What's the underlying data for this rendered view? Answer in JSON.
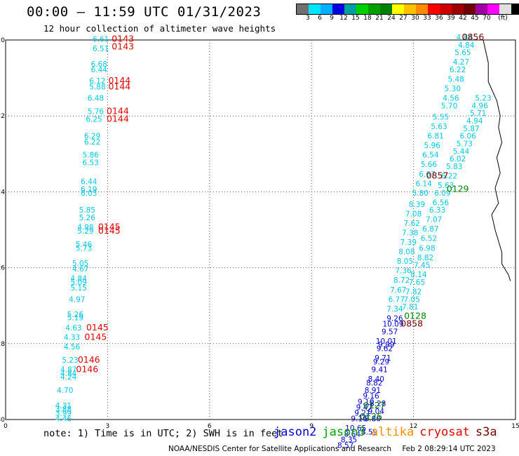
{
  "header": {
    "title": "00:00 – 11:59 UTC 01/31/2023",
    "subtitle": "12 hour collection of altimeter wave heights"
  },
  "colorbar": {
    "colors": [
      "#707070",
      "#00e5ff",
      "#00b0ff",
      "#0000e0",
      "#00a0a0",
      "#00d000",
      "#00a000",
      "#008000",
      "#ffff00",
      "#ffc000",
      "#ff8c00",
      "#ff0000",
      "#d00000",
      "#a00000",
      "#700000",
      "#a000a0",
      "#ff00ff",
      "#e0e0e0",
      "#000000"
    ],
    "labels": [
      "3",
      "6",
      "9",
      "12",
      "15",
      "18",
      "21",
      "24",
      "27",
      "30",
      "33",
      "36",
      "39",
      "42",
      "45",
      "70",
      "(ft)"
    ]
  },
  "chart_data": {
    "type": "scatter",
    "xlim": [
      0,
      15
    ],
    "ylim": [
      -30,
      -20
    ],
    "x_ticks": [
      "0",
      "3",
      "6",
      "9",
      "12",
      "15"
    ],
    "y_ticks": [
      "-20",
      "-22",
      "-24",
      "-26",
      "-28",
      "-30"
    ],
    "grid": true,
    "series": [
      {
        "name": "cryosat",
        "color": "#00c8e8",
        "points": [
          {
            "x": 2.8,
            "y": -20.05,
            "v": "6.61"
          },
          {
            "x": 2.8,
            "y": -20.3,
            "v": "6.51"
          },
          {
            "x": 2.75,
            "y": -20.7,
            "v": "6.68"
          },
          {
            "x": 2.75,
            "y": -20.85,
            "v": "6.44"
          },
          {
            "x": 2.7,
            "y": -21.15,
            "v": "6.12"
          },
          {
            "x": 2.7,
            "y": -21.3,
            "v": "5.88"
          },
          {
            "x": 2.65,
            "y": -21.6,
            "v": "6.48"
          },
          {
            "x": 2.65,
            "y": -21.95,
            "v": "5.76"
          },
          {
            "x": 2.6,
            "y": -22.15,
            "v": "6.25"
          },
          {
            "x": 2.55,
            "y": -22.6,
            "v": "6.29"
          },
          {
            "x": 2.55,
            "y": -22.75,
            "v": "6.22"
          },
          {
            "x": 2.5,
            "y": -23.1,
            "v": "5.86"
          },
          {
            "x": 2.5,
            "y": -23.3,
            "v": "6.53"
          },
          {
            "x": 2.45,
            "y": -23.8,
            "v": "6.44"
          },
          {
            "x": 2.45,
            "y": -24.0,
            "v": "6.19"
          },
          {
            "x": 2.45,
            "y": -24.1,
            "v": "6.03"
          },
          {
            "x": 2.4,
            "y": -24.55,
            "v": "5.85"
          },
          {
            "x": 2.4,
            "y": -24.75,
            "v": "5.26"
          },
          {
            "x": 2.35,
            "y": -25.0,
            "v": "4.98"
          },
          {
            "x": 2.35,
            "y": -25.1,
            "v": "5.29"
          },
          {
            "x": 2.3,
            "y": -25.45,
            "v": "5.46"
          },
          {
            "x": 2.3,
            "y": -25.55,
            "v": "5.73"
          },
          {
            "x": 2.2,
            "y": -25.95,
            "v": "5.05"
          },
          {
            "x": 2.2,
            "y": -26.1,
            "v": "4.67"
          },
          {
            "x": 2.15,
            "y": -26.35,
            "v": "4.84"
          },
          {
            "x": 2.15,
            "y": -26.45,
            "v": "5.09"
          },
          {
            "x": 2.15,
            "y": -26.6,
            "v": "5.15"
          },
          {
            "x": 2.1,
            "y": -26.9,
            "v": "4.97"
          },
          {
            "x": 2.05,
            "y": -27.3,
            "v": "5.26"
          },
          {
            "x": 2.05,
            "y": -27.38,
            "v": "5.19"
          },
          {
            "x": 2.0,
            "y": -27.65,
            "v": "4.63"
          },
          {
            "x": 1.95,
            "y": -27.9,
            "v": "4.33"
          },
          {
            "x": 1.95,
            "y": -28.15,
            "v": "4.56"
          },
          {
            "x": 1.9,
            "y": -28.5,
            "v": "5.23"
          },
          {
            "x": 1.85,
            "y": -28.75,
            "v": "4.87"
          },
          {
            "x": 1.85,
            "y": -28.85,
            "v": "4.84"
          },
          {
            "x": 1.85,
            "y": -28.95,
            "v": "4.24"
          },
          {
            "x": 1.75,
            "y": -29.3,
            "v": "4.70"
          },
          {
            "x": 1.7,
            "y": -29.7,
            "v": "4.31"
          },
          {
            "x": 1.7,
            "y": -29.8,
            "v": "3.88"
          },
          {
            "x": 1.7,
            "y": -29.9,
            "v": "3.99"
          },
          {
            "x": 1.7,
            "y": -30.05,
            "v": "4.46"
          }
        ]
      },
      {
        "name": "cryosat",
        "color": "#00c8e8",
        "points": [
          {
            "x": 13.5,
            "y": -20.0,
            "v": "4.84"
          },
          {
            "x": 13.55,
            "y": -20.2,
            "v": "4.84"
          },
          {
            "x": 13.45,
            "y": -20.4,
            "v": "5.65"
          },
          {
            "x": 13.4,
            "y": -20.65,
            "v": "4.27"
          },
          {
            "x": 13.3,
            "y": -20.85,
            "v": "6.22"
          },
          {
            "x": 13.25,
            "y": -21.1,
            "v": "5.48"
          },
          {
            "x": 13.15,
            "y": -21.35,
            "v": "5.30"
          },
          {
            "x": 13.1,
            "y": -21.6,
            "v": "4.56"
          },
          {
            "x": 13.05,
            "y": -21.8,
            "v": "5.70"
          },
          {
            "x": 12.8,
            "y": -22.1,
            "v": "5.55"
          },
          {
            "x": 12.75,
            "y": -22.35,
            "v": "5.63"
          },
          {
            "x": 12.65,
            "y": -22.6,
            "v": "6.81"
          },
          {
            "x": 12.55,
            "y": -22.85,
            "v": "5.96"
          },
          {
            "x": 12.5,
            "y": -23.1,
            "v": "6.54"
          },
          {
            "x": 12.45,
            "y": -23.35,
            "v": "5.66"
          },
          {
            "x": 12.4,
            "y": -23.6,
            "v": "6.67"
          },
          {
            "x": 12.3,
            "y": -23.85,
            "v": "6.14"
          },
          {
            "x": 12.2,
            "y": -24.1,
            "v": "5.80"
          },
          {
            "x": 12.1,
            "y": -24.4,
            "v": "8.39"
          },
          {
            "x": 12.0,
            "y": -24.65,
            "v": "7.08"
          },
          {
            "x": 11.95,
            "y": -24.9,
            "v": "7.62"
          },
          {
            "x": 11.9,
            "y": -25.15,
            "v": "7.38"
          },
          {
            "x": 11.85,
            "y": -25.4,
            "v": "7.39"
          },
          {
            "x": 11.8,
            "y": -25.65,
            "v": "8.08"
          },
          {
            "x": 11.75,
            "y": -25.9,
            "v": "8.05"
          },
          {
            "x": 11.7,
            "y": -26.15,
            "v": "7.36"
          },
          {
            "x": 11.65,
            "y": -26.4,
            "v": "8.72"
          },
          {
            "x": 11.55,
            "y": -26.65,
            "v": "7.67"
          },
          {
            "x": 11.5,
            "y": -26.9,
            "v": "6.77"
          },
          {
            "x": 11.45,
            "y": -27.15,
            "v": "7.34"
          },
          {
            "x": 14.05,
            "y": -21.6,
            "v": "5.23"
          },
          {
            "x": 13.95,
            "y": -21.8,
            "v": "4.96"
          },
          {
            "x": 13.9,
            "y": -22.0,
            "v": "5.71"
          },
          {
            "x": 13.8,
            "y": -22.2,
            "v": "4.94"
          },
          {
            "x": 13.7,
            "y": -22.4,
            "v": "5.87"
          },
          {
            "x": 13.6,
            "y": -22.6,
            "v": "6.06"
          },
          {
            "x": 13.5,
            "y": -22.8,
            "v": "5.73"
          },
          {
            "x": 13.4,
            "y": -23.0,
            "v": "5.44"
          },
          {
            "x": 13.3,
            "y": -23.2,
            "v": "6.02"
          },
          {
            "x": 13.2,
            "y": -23.4,
            "v": "5.83"
          },
          {
            "x": 13.05,
            "y": -23.65,
            "v": "6.22"
          },
          {
            "x": 12.95,
            "y": -23.9,
            "v": "5.63"
          },
          {
            "x": 12.85,
            "y": -24.1,
            "v": "6.09"
          },
          {
            "x": 12.8,
            "y": -24.35,
            "v": "6.56"
          },
          {
            "x": 12.7,
            "y": -24.55,
            "v": "6.33"
          },
          {
            "x": 12.6,
            "y": -24.8,
            "v": "7.07"
          },
          {
            "x": 12.5,
            "y": -25.05,
            "v": "6.87"
          },
          {
            "x": 12.45,
            "y": -25.3,
            "v": "6.52"
          },
          {
            "x": 12.4,
            "y": -25.55,
            "v": "6.98"
          },
          {
            "x": 12.35,
            "y": -25.8,
            "v": "8.82"
          },
          {
            "x": 12.25,
            "y": -26.0,
            "v": "7.45"
          },
          {
            "x": 12.15,
            "y": -26.25,
            "v": "8.14"
          },
          {
            "x": 12.1,
            "y": -26.45,
            "v": "7.65"
          },
          {
            "x": 12.0,
            "y": -26.7,
            "v": "7.82"
          },
          {
            "x": 11.95,
            "y": -26.9,
            "v": "7.05"
          },
          {
            "x": 11.9,
            "y": -27.1,
            "v": "7.81"
          }
        ]
      },
      {
        "name": "jason2",
        "color": "#0000cc",
        "points": [
          {
            "x": 11.45,
            "y": -27.4,
            "v": "9.26"
          },
          {
            "x": 11.4,
            "y": -27.55,
            "v": "10.09"
          },
          {
            "x": 11.3,
            "y": -27.75,
            "v": "9.57"
          },
          {
            "x": 11.2,
            "y": -28.0,
            "v": "10.01"
          },
          {
            "x": 11.2,
            "y": -28.1,
            "v": "9.99"
          },
          {
            "x": 11.15,
            "y": -28.2,
            "v": "9.62"
          },
          {
            "x": 11.1,
            "y": -28.45,
            "v": "9.71"
          },
          {
            "x": 11.05,
            "y": -28.55,
            "v": "9.29"
          },
          {
            "x": 11.0,
            "y": -28.75,
            "v": "9.41"
          },
          {
            "x": 10.9,
            "y": -29.0,
            "v": "8.40"
          },
          {
            "x": 10.85,
            "y": -29.1,
            "v": "8.82"
          },
          {
            "x": 10.8,
            "y": -29.3,
            "v": "8.91"
          },
          {
            "x": 10.75,
            "y": -29.45,
            "v": "9.16"
          },
          {
            "x": 10.6,
            "y": -29.6,
            "v": "9.10"
          },
          {
            "x": 10.55,
            "y": -29.75,
            "v": "9.47"
          },
          {
            "x": 10.5,
            "y": -29.9,
            "v": "9.21"
          },
          {
            "x": 10.4,
            "y": -30.05,
            "v": "9.16"
          },
          {
            "x": 10.3,
            "y": -30.3,
            "v": "10.65"
          },
          {
            "x": 10.2,
            "y": -30.45,
            "v": "8.64"
          },
          {
            "x": 10.1,
            "y": -30.6,
            "v": "8.35"
          },
          {
            "x": 10.0,
            "y": -30.75,
            "v": "8.57"
          },
          {
            "x": 10.95,
            "y": -29.65,
            "v": "8.28"
          },
          {
            "x": 10.9,
            "y": -29.85,
            "v": "9.04"
          },
          {
            "x": 10.8,
            "y": -30.05,
            "v": "8.80"
          },
          {
            "x": 10.7,
            "y": -30.4,
            "v": "8.59"
          }
        ]
      }
    ],
    "pass_labels": [
      {
        "x": 3.45,
        "y": -20.05,
        "text": "0143",
        "color": "#e00000"
      },
      {
        "x": 3.45,
        "y": -20.25,
        "text": "0143",
        "color": "#e00000"
      },
      {
        "x": 3.35,
        "y": -21.15,
        "text": "0144",
        "color": "#e00000"
      },
      {
        "x": 3.35,
        "y": -21.3,
        "text": "0144",
        "color": "#e00000"
      },
      {
        "x": 3.3,
        "y": -21.95,
        "text": "0144",
        "color": "#e00000"
      },
      {
        "x": 3.3,
        "y": -22.15,
        "text": "0144",
        "color": "#e00000"
      },
      {
        "x": 3.05,
        "y": -25.0,
        "text": "0145",
        "color": "#e00000"
      },
      {
        "x": 3.05,
        "y": -25.1,
        "text": "0145",
        "color": "#e00000"
      },
      {
        "x": 2.7,
        "y": -27.65,
        "text": "0145",
        "color": "#e00000"
      },
      {
        "x": 2.65,
        "y": -27.9,
        "text": "0145",
        "color": "#e00000"
      },
      {
        "x": 2.45,
        "y": -28.5,
        "text": "0146",
        "color": "#e00000"
      },
      {
        "x": 2.4,
        "y": -28.75,
        "text": "0146",
        "color": "#e00000"
      },
      {
        "x": 13.75,
        "y": -20.0,
        "text": "0856",
        "color": "#700000"
      },
      {
        "x": 12.7,
        "y": -23.65,
        "text": "0857",
        "color": "#700000"
      },
      {
        "x": 11.95,
        "y": -27.55,
        "text": "0858",
        "color": "#700000"
      },
      {
        "x": 13.3,
        "y": -24.0,
        "text": "0129",
        "color": "#008000"
      },
      {
        "x": 12.05,
        "y": -27.35,
        "text": "0128",
        "color": "#008000"
      },
      {
        "x": 10.85,
        "y": -29.7,
        "text": "0127",
        "color": "#008000"
      },
      {
        "x": 10.75,
        "y": -30.0,
        "text": "0126",
        "color": "#008000"
      }
    ]
  },
  "footer": {
    "note": "note: 1) Time is in UTC; 2) SWH is in feet",
    "legend": [
      {
        "label": "jason2",
        "color": "#0000e0"
      },
      {
        "label": "jason3",
        "color": "#00a000"
      },
      {
        "label": "altika",
        "color": "#ff8c00"
      },
      {
        "label": "cryosat",
        "color": "#e00000"
      },
      {
        "label": "s3a",
        "color": "#700000"
      }
    ],
    "credit": "NOAA/NESDIS Center for Satellite Applications and Research",
    "timestamp": "Feb  2 08:29:14 UTC 2023"
  }
}
